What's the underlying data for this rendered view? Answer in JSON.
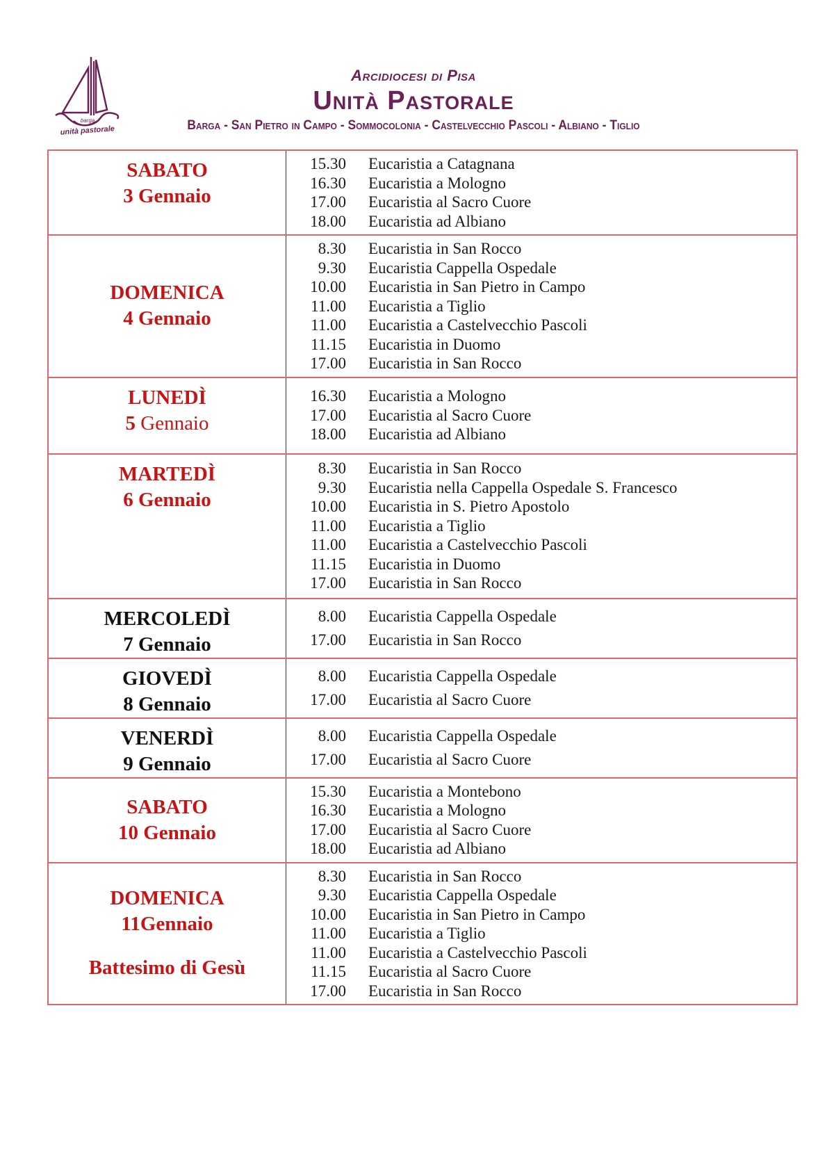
{
  "header": {
    "diocese": "Arcidiocesi di Pisa",
    "title": "Unità Pastorale",
    "parishes": "Barga - San Pietro in Campo - Sommocolonia - Castelvecchio Pascoli - Albiano - Tiglio",
    "logo": {
      "icon": "sailboat-icon",
      "caption_line1": "barga",
      "caption_line2": "unità pastorale"
    }
  },
  "colors": {
    "brand": "#6c2156",
    "day_red": "#c41414",
    "day_black": "#111111",
    "table_border": "#e0666a",
    "column_divider": "#3a3a3a"
  },
  "schedule": [
    {
      "day": "SABATO",
      "date": "3 Gennaio",
      "color": "red",
      "events": [
        {
          "time": "15.30",
          "desc": "Eucaristia a Catagnana"
        },
        {
          "time": "16.30",
          "desc": "Eucaristia a Mologno"
        },
        {
          "time": "17.00",
          "desc": "Eucaristia al Sacro Cuore"
        },
        {
          "time": "18.00",
          "desc": "Eucaristia ad Albiano"
        }
      ]
    },
    {
      "day": "DOMENICA",
      "date": "4 Gennaio",
      "color": "red",
      "events": [
        {
          "time": "8.30",
          "desc": "Eucaristia in San Rocco"
        },
        {
          "time": "9.30",
          "desc": "Eucaristia Cappella Ospedale"
        },
        {
          "time": "10.00",
          "desc": "Eucaristia in San Pietro in Campo"
        },
        {
          "time": "11.00",
          "desc": "Eucaristia a Tiglio"
        },
        {
          "time": "11.00",
          "desc": "Eucaristia a Castelvecchio Pascoli"
        },
        {
          "time": "11.15",
          "desc": "Eucaristia in Duomo"
        },
        {
          "time": "17.00",
          "desc": "Eucaristia in San Rocco"
        }
      ]
    },
    {
      "day": "LUNEDÌ",
      "date": "5 Gennaio",
      "date_word_regular": true,
      "color": "red",
      "events": [
        {
          "time": "16.30",
          "desc": "Eucaristia a Mologno"
        },
        {
          "time": "17.00",
          "desc": "Eucaristia al Sacro Cuore"
        },
        {
          "time": "18.00",
          "desc": "Eucaristia ad Albiano"
        }
      ]
    },
    {
      "day": "MARTEDÌ",
      "date": "6 Gennaio",
      "color": "red",
      "events": [
        {
          "time": "8.30",
          "desc": "Eucaristia in San Rocco"
        },
        {
          "time": "9.30",
          "desc": "Eucaristia nella Cappella Ospedale S. Francesco"
        },
        {
          "time": "10.00",
          "desc": "Eucaristia in S. Pietro Apostolo"
        },
        {
          "time": "11.00",
          "desc": "Eucaristia a Tiglio"
        },
        {
          "time": "11.00",
          "desc": "Eucaristia a Castelvecchio Pascoli"
        },
        {
          "time": "11.15",
          "desc": "Eucaristia in Duomo"
        },
        {
          "time": "17.00",
          "desc": "Eucaristia in San Rocco"
        }
      ]
    },
    {
      "day": "MERCOLEDÌ",
      "date": "7 Gennaio",
      "color": "black",
      "events": [
        {
          "time": "8.00",
          "desc": "Eucaristia Cappella Ospedale"
        },
        {
          "time": "17.00",
          "desc": "Eucaristia in San Rocco"
        }
      ]
    },
    {
      "day": "GIOVEDÌ",
      "date": "8 Gennaio",
      "color": "black",
      "events": [
        {
          "time": "8.00",
          "desc": "Eucaristia Cappella Ospedale"
        },
        {
          "time": "17.00",
          "desc": "Eucaristia al Sacro Cuore"
        }
      ]
    },
    {
      "day": "VENERDÌ",
      "date": "9 Gennaio",
      "color": "black",
      "events": [
        {
          "time": "8.00",
          "desc": "Eucaristia Cappella Ospedale"
        },
        {
          "time": "17.00",
          "desc": "Eucaristia al Sacro Cuore"
        }
      ]
    },
    {
      "day": "SABATO",
      "date": "10 Gennaio",
      "color": "red",
      "events": [
        {
          "time": "15.30",
          "desc": "Eucaristia a Montebono"
        },
        {
          "time": "16.30",
          "desc": "Eucaristia a Mologno"
        },
        {
          "time": "17.00",
          "desc": "Eucaristia al Sacro Cuore"
        },
        {
          "time": "18.00",
          "desc": "Eucaristia ad Albiano"
        }
      ]
    },
    {
      "day": "DOMENICA",
      "date": "11Gennaio",
      "note": "Battesimo di Gesù",
      "color": "red",
      "events": [
        {
          "time": "8.30",
          "desc": "Eucaristia in San Rocco"
        },
        {
          "time": "9.30",
          "desc": "Eucaristia Cappella Ospedale"
        },
        {
          "time": "10.00",
          "desc": "Eucaristia in San Pietro in Campo"
        },
        {
          "time": "11.00",
          "desc": "Eucaristia a Tiglio"
        },
        {
          "time": "11.00",
          "desc": "Eucaristia a Castelvecchio Pascoli"
        },
        {
          "time": "11.15",
          "desc": "Eucaristia al Sacro Cuore"
        },
        {
          "time": "17.00",
          "desc": "Eucaristia in San Rocco"
        }
      ]
    }
  ]
}
